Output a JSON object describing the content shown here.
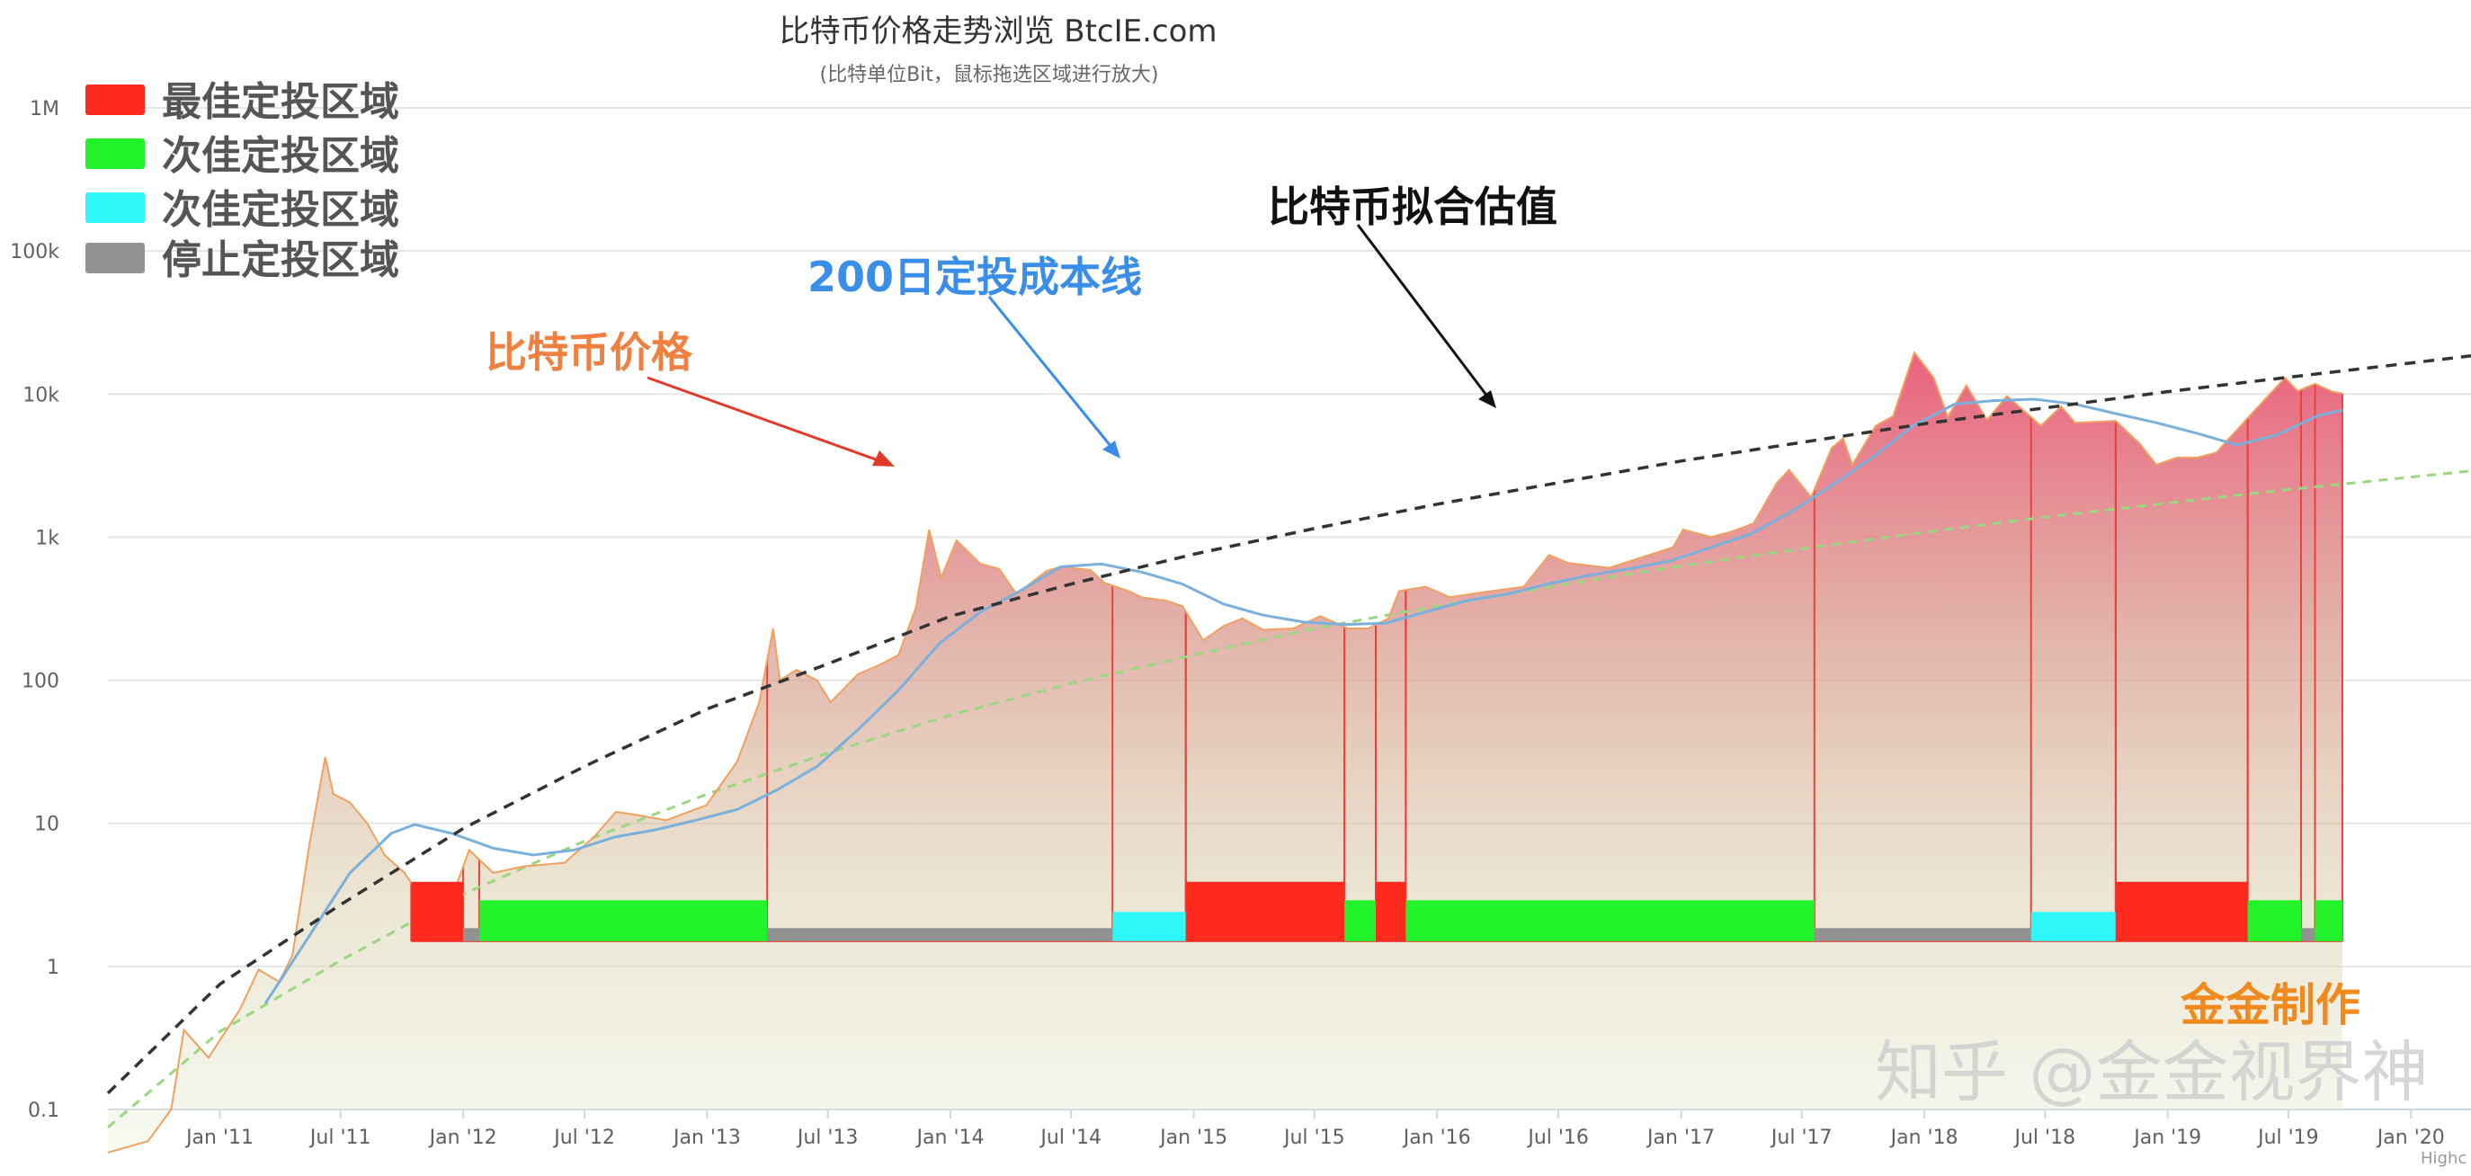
{
  "title": "比特币价格走势浏览 BtcIE.com",
  "subtitle": "(比特单位Bit，鼠标拖选区域进行放大)",
  "watermark": {
    "author": "金金制作",
    "site": "知乎 @金金视界神",
    "credit": "Highc"
  },
  "colors": {
    "best": "#ff2a1f",
    "good": "#22f22a",
    "good2": "#2ef7f7",
    "stop": "#929292",
    "price_line": "#f0a060",
    "cost_line": "#7ab0dc",
    "fit_line": "#333333",
    "lower_fit_line": "#9ad77e",
    "ann_price": "#f08040",
    "ann_cost": "#3a8ee8",
    "ann_fit": "#111111"
  },
  "annotations": {
    "price": "比特币价格",
    "cost": "200日定投成本线",
    "fit": "比特币拟合估值"
  },
  "chart_data": {
    "type": "area",
    "y_scale": "log",
    "ylim": [
      0.1,
      1000000
    ],
    "xlim": [
      "2010-07-17",
      "2020-03-31"
    ],
    "grid": true,
    "legend_position": "top-left",
    "y_ticks": [
      "0.1",
      "1",
      "10",
      "100",
      "1k",
      "10k",
      "100k",
      "1M"
    ],
    "x_ticks": [
      "Jan '11",
      "Jul '11",
      "Jan '12",
      "Jul '12",
      "Jan '13",
      "Jul '13",
      "Jan '14",
      "Jul '14",
      "Jan '15",
      "Jul '15",
      "Jan '16",
      "Jul '16",
      "Jan '17",
      "Jul '17",
      "Jan '18",
      "Jul '18",
      "Jan '19",
      "Jul '19",
      "Jan '20"
    ],
    "legend": [
      {
        "label": "最佳定投区域",
        "color": "#ff2a1f"
      },
      {
        "label": "次佳定投区域",
        "color": "#22f22a"
      },
      {
        "label": "次佳定投区域",
        "color": "#2ef7f7"
      },
      {
        "label": "停止定投区域",
        "color": "#929292"
      }
    ],
    "series": [
      {
        "name": "比特币价格",
        "color": "#f0a060",
        "points": [
          [
            "2010-07-17",
            0.05
          ],
          [
            "2010-09-15",
            0.06
          ],
          [
            "2010-10-20",
            0.1
          ],
          [
            "2010-11-08",
            0.36
          ],
          [
            "2010-12-15",
            0.23
          ],
          [
            "2011-01-31",
            0.5
          ],
          [
            "2011-02-28",
            0.95
          ],
          [
            "2011-03-31",
            0.78
          ],
          [
            "2011-04-20",
            1.2
          ],
          [
            "2011-05-15",
            7
          ],
          [
            "2011-06-08",
            29
          ],
          [
            "2011-06-20",
            16
          ],
          [
            "2011-07-15",
            14
          ],
          [
            "2011-08-10",
            10
          ],
          [
            "2011-09-05",
            6
          ],
          [
            "2011-10-05",
            4.5
          ],
          [
            "2011-11-18",
            2.2
          ],
          [
            "2011-12-20",
            3.5
          ],
          [
            "2012-01-10",
            6.5
          ],
          [
            "2012-02-15",
            4.5
          ],
          [
            "2012-04-01",
            5
          ],
          [
            "2012-06-01",
            5.3
          ],
          [
            "2012-07-15",
            8
          ],
          [
            "2012-08-17",
            12
          ],
          [
            "2012-09-15",
            11.5
          ],
          [
            "2012-11-01",
            10.5
          ],
          [
            "2012-12-31",
            13.4
          ],
          [
            "2013-02-15",
            27
          ],
          [
            "2013-03-20",
            70
          ],
          [
            "2013-04-10",
            230
          ],
          [
            "2013-04-20",
            100
          ],
          [
            "2013-05-15",
            118
          ],
          [
            "2013-06-15",
            100
          ],
          [
            "2013-07-05",
            70
          ],
          [
            "2013-08-15",
            110
          ],
          [
            "2013-09-15",
            127
          ],
          [
            "2013-10-15",
            150
          ],
          [
            "2013-11-10",
            320
          ],
          [
            "2013-11-30",
            1130
          ],
          [
            "2013-12-18",
            520
          ],
          [
            "2014-01-10",
            950
          ],
          [
            "2014-02-15",
            650
          ],
          [
            "2014-03-15",
            600
          ],
          [
            "2014-04-10",
            400
          ],
          [
            "2014-05-25",
            580
          ],
          [
            "2014-06-15",
            620
          ],
          [
            "2014-07-30",
            590
          ],
          [
            "2014-08-20",
            480
          ],
          [
            "2014-09-25",
            420
          ],
          [
            "2014-10-15",
            380
          ],
          [
            "2014-11-20",
            360
          ],
          [
            "2014-12-15",
            330
          ],
          [
            "2015-01-15",
            190
          ],
          [
            "2015-02-15",
            240
          ],
          [
            "2015-03-15",
            270
          ],
          [
            "2015-04-15",
            225
          ],
          [
            "2015-05-30",
            230
          ],
          [
            "2015-07-10",
            280
          ],
          [
            "2015-08-20",
            230
          ],
          [
            "2015-09-20",
            230
          ],
          [
            "2015-10-20",
            270
          ],
          [
            "2015-11-05",
            420
          ],
          [
            "2015-12-15",
            450
          ],
          [
            "2016-01-20",
            380
          ],
          [
            "2016-03-15",
            415
          ],
          [
            "2016-05-10",
            450
          ],
          [
            "2016-06-17",
            750
          ],
          [
            "2016-07-15",
            660
          ],
          [
            "2016-09-15",
            610
          ],
          [
            "2016-10-25",
            700
          ],
          [
            "2016-12-20",
            850
          ],
          [
            "2017-01-04",
            1130
          ],
          [
            "2017-02-15",
            1000
          ],
          [
            "2017-03-20",
            1100
          ],
          [
            "2017-04-20",
            1250
          ],
          [
            "2017-05-25",
            2400
          ],
          [
            "2017-06-12",
            2950
          ],
          [
            "2017-07-15",
            1900
          ],
          [
            "2017-08-15",
            4200
          ],
          [
            "2017-09-01",
            4900
          ],
          [
            "2017-09-15",
            3200
          ],
          [
            "2017-10-20",
            6000
          ],
          [
            "2017-11-15",
            7000
          ],
          [
            "2017-12-17",
            19500
          ],
          [
            "2018-01-15",
            13000
          ],
          [
            "2018-02-05",
            6900
          ],
          [
            "2018-03-05",
            11500
          ],
          [
            "2018-04-05",
            6600
          ],
          [
            "2018-05-05",
            9700
          ],
          [
            "2018-06-25",
            6000
          ],
          [
            "2018-07-25",
            8200
          ],
          [
            "2018-08-15",
            6300
          ],
          [
            "2018-10-15",
            6500
          ],
          [
            "2018-11-20",
            4500
          ],
          [
            "2018-12-15",
            3200
          ],
          [
            "2019-01-15",
            3600
          ],
          [
            "2019-02-15",
            3600
          ],
          [
            "2019-03-15",
            3900
          ],
          [
            "2019-04-05",
            5000
          ],
          [
            "2019-05-15",
            8000
          ],
          [
            "2019-06-26",
            13000
          ],
          [
            "2019-07-15",
            10500
          ],
          [
            "2019-08-10",
            11800
          ],
          [
            "2019-09-05",
            10400
          ],
          [
            "2019-09-20",
            10100
          ]
        ]
      },
      {
        "name": "200日定投成本线",
        "color": "#7ab0dc",
        "points": [
          [
            "2011-03-10",
            0.55
          ],
          [
            "2011-05-10",
            1.5
          ],
          [
            "2011-07-15",
            4.5
          ],
          [
            "2011-09-15",
            8.5
          ],
          [
            "2011-10-20",
            9.8
          ],
          [
            "2011-12-15",
            8.5
          ],
          [
            "2012-02-15",
            6.7
          ],
          [
            "2012-04-15",
            6
          ],
          [
            "2012-06-15",
            6.5
          ],
          [
            "2012-08-15",
            8
          ],
          [
            "2012-10-15",
            9
          ],
          [
            "2012-12-15",
            10.5
          ],
          [
            "2013-02-15",
            12.5
          ],
          [
            "2013-04-15",
            17
          ],
          [
            "2013-06-15",
            25
          ],
          [
            "2013-08-15",
            45
          ],
          [
            "2013-10-15",
            85
          ],
          [
            "2013-12-15",
            180
          ],
          [
            "2014-02-15",
            300
          ],
          [
            "2014-04-15",
            420
          ],
          [
            "2014-06-15",
            620
          ],
          [
            "2014-08-15",
            650
          ],
          [
            "2014-10-15",
            570
          ],
          [
            "2014-12-15",
            470
          ],
          [
            "2015-02-15",
            340
          ],
          [
            "2015-04-15",
            285
          ],
          [
            "2015-06-15",
            255
          ],
          [
            "2015-08-15",
            245
          ],
          [
            "2015-10-15",
            250
          ],
          [
            "2015-12-15",
            300
          ],
          [
            "2016-02-15",
            360
          ],
          [
            "2016-04-15",
            400
          ],
          [
            "2016-06-15",
            470
          ],
          [
            "2016-08-15",
            540
          ],
          [
            "2016-10-15",
            600
          ],
          [
            "2016-12-15",
            680
          ],
          [
            "2017-02-15",
            850
          ],
          [
            "2017-04-15",
            1050
          ],
          [
            "2017-06-15",
            1500
          ],
          [
            "2017-08-15",
            2300
          ],
          [
            "2017-10-15",
            3600
          ],
          [
            "2017-12-15",
            6000
          ],
          [
            "2018-02-15",
            8500
          ],
          [
            "2018-04-15",
            9000
          ],
          [
            "2018-06-15",
            9200
          ],
          [
            "2018-08-15",
            8500
          ],
          [
            "2018-10-15",
            7300
          ],
          [
            "2018-12-15",
            6300
          ],
          [
            "2019-02-15",
            5300
          ],
          [
            "2019-04-15",
            4400
          ],
          [
            "2019-06-15",
            5200
          ],
          [
            "2019-08-15",
            7100
          ],
          [
            "2019-09-20",
            7700
          ]
        ]
      },
      {
        "name": "比特币拟合估值",
        "color": "#333333",
        "dashed": true,
        "points": [
          [
            "2010-07-17",
            0.13
          ],
          [
            "2011-01-01",
            0.75
          ],
          [
            "2011-07-01",
            2.7
          ],
          [
            "2012-01-01",
            9.2
          ],
          [
            "2012-07-01",
            25
          ],
          [
            "2013-01-01",
            63
          ],
          [
            "2013-07-01",
            130
          ],
          [
            "2014-01-01",
            280
          ],
          [
            "2014-07-01",
            470
          ],
          [
            "2015-01-01",
            760
          ],
          [
            "2015-07-01",
            1150
          ],
          [
            "2016-01-01",
            1700
          ],
          [
            "2016-07-01",
            2400
          ],
          [
            "2017-01-01",
            3400
          ],
          [
            "2017-07-01",
            4600
          ],
          [
            "2018-01-01",
            6200
          ],
          [
            "2018-07-01",
            8000
          ],
          [
            "2019-01-01",
            10400
          ],
          [
            "2019-07-01",
            13100
          ],
          [
            "2020-01-01",
            16500
          ],
          [
            "2020-03-31",
            18500
          ]
        ]
      },
      {
        "name": "",
        "color": "#9ad77e",
        "dashed": true,
        "points": [
          [
            "2010-07-17",
            0.075
          ],
          [
            "2011-01-01",
            0.35
          ],
          [
            "2011-07-01",
            1.1
          ],
          [
            "2012-01-01",
            3.2
          ],
          [
            "2012-07-01",
            7.5
          ],
          [
            "2013-01-01",
            16
          ],
          [
            "2013-07-01",
            31
          ],
          [
            "2014-01-01",
            57
          ],
          [
            "2014-07-01",
            95
          ],
          [
            "2015-01-01",
            150
          ],
          [
            "2015-07-01",
            230
          ],
          [
            "2016-01-01",
            330
          ],
          [
            "2016-07-01",
            460
          ],
          [
            "2017-01-01",
            630
          ],
          [
            "2017-07-01",
            830
          ],
          [
            "2018-01-01",
            1080
          ],
          [
            "2018-07-01",
            1380
          ],
          [
            "2019-01-01",
            1730
          ],
          [
            "2019-07-01",
            2150
          ],
          [
            "2020-01-01",
            2630
          ],
          [
            "2020-03-31",
            2900
          ]
        ]
      }
    ],
    "zones": [
      {
        "start": "2011-10-15",
        "end": "2012-01-01",
        "type": "best"
      },
      {
        "start": "2012-01-01",
        "end": "2012-01-25",
        "type": "stop"
      },
      {
        "start": "2012-01-25",
        "end": "2013-04-01",
        "type": "good"
      },
      {
        "start": "2013-04-01",
        "end": "2014-09-01",
        "type": "stop"
      },
      {
        "start": "2014-09-01",
        "end": "2014-12-20",
        "type": "good2"
      },
      {
        "start": "2014-12-20",
        "end": "2015-08-15",
        "type": "best"
      },
      {
        "start": "2015-08-15",
        "end": "2015-10-01",
        "type": "good"
      },
      {
        "start": "2015-10-01",
        "end": "2015-11-15",
        "type": "best"
      },
      {
        "start": "2015-11-15",
        "end": "2017-07-20",
        "type": "good"
      },
      {
        "start": "2017-07-20",
        "end": "2018-06-10",
        "type": "stop"
      },
      {
        "start": "2018-06-10",
        "end": "2018-10-15",
        "type": "good2"
      },
      {
        "start": "2018-10-15",
        "end": "2019-05-01",
        "type": "best"
      },
      {
        "start": "2019-05-01",
        "end": "2019-07-20",
        "type": "good"
      },
      {
        "start": "2019-07-20",
        "end": "2019-08-10",
        "type": "stop"
      },
      {
        "start": "2019-08-10",
        "end": "2019-09-20",
        "type": "good"
      }
    ],
    "zone_heights": {
      "best": 3.9,
      "good": 2.9,
      "good2": 2.4,
      "stop": 1.85
    }
  }
}
